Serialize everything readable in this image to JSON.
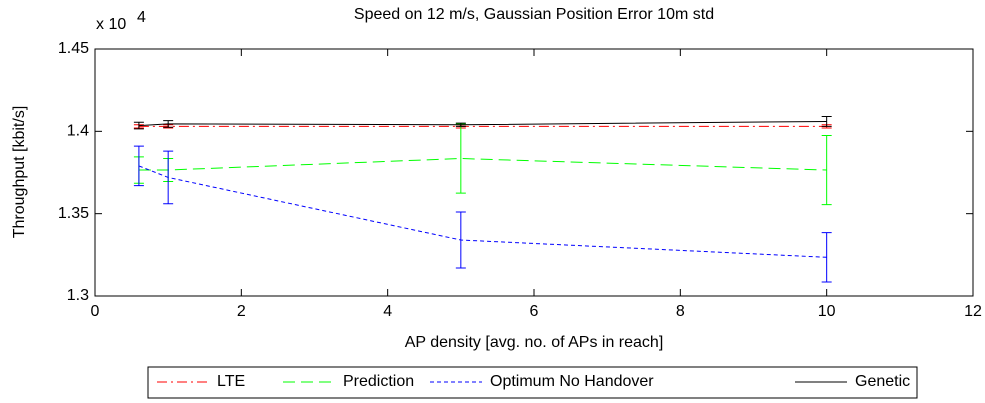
{
  "chart_data": {
    "type": "line",
    "title": "Speed on 12 m/s, Gaussian Position Error 10m std",
    "x_label": "AP density [avg. no. of APs in reach]",
    "y_label": "Throughput [kbit/s]",
    "y_multiplier": {
      "base": "x 10",
      "exponent": "4"
    },
    "x": [
      0.6,
      1,
      5,
      10
    ],
    "xlim": [
      0,
      12
    ],
    "xticks": [
      0,
      2,
      4,
      6,
      8,
      10,
      12
    ],
    "ylim": [
      1.3,
      1.45
    ],
    "yticks": [
      1.3,
      1.35,
      1.4,
      1.45
    ],
    "legend": "bottom",
    "series": [
      {
        "name": "LTE",
        "color": "#ff0000",
        "dash": "10,4,2,4",
        "values": [
          1.403,
          1.403,
          1.403,
          1.403
        ],
        "errors": [
          0.001,
          0.001,
          0.001,
          0.001
        ]
      },
      {
        "name": "Prediction",
        "color": "#00ff00",
        "dash": "12,6",
        "values": [
          1.3765,
          1.3765,
          1.3835,
          1.3765
        ],
        "errors": [
          0.008,
          0.007,
          0.021,
          0.021
        ]
      },
      {
        "name": "Optimum No Handover",
        "color": "#0000ff",
        "dash": "4,3",
        "values": [
          1.379,
          1.372,
          1.334,
          1.3235
        ],
        "errors": [
          0.012,
          0.016,
          0.017,
          0.015
        ]
      },
      {
        "name": "Genetic",
        "color": "#000000",
        "dash": "",
        "values": [
          1.4035,
          1.4045,
          1.404,
          1.406
        ],
        "errors": [
          0.002,
          0.002,
          0.001,
          0.003
        ]
      }
    ]
  }
}
